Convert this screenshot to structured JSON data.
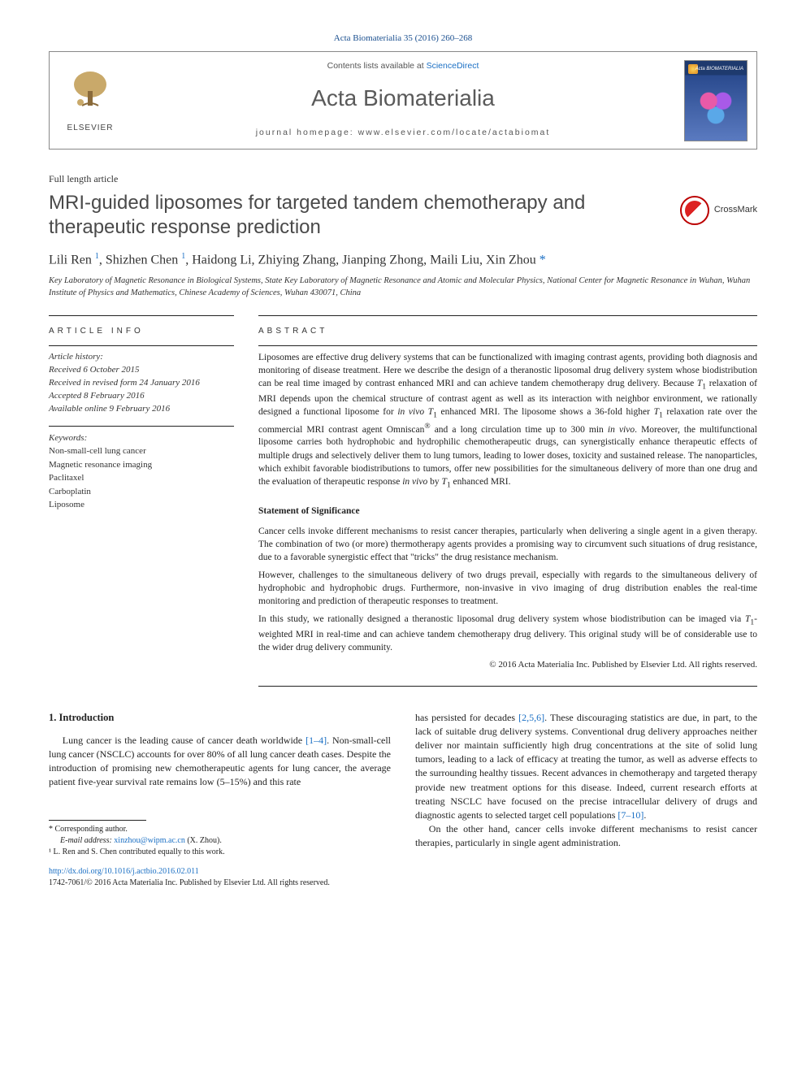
{
  "top_ref": "Acta Biomaterialia 35 (2016) 260–268",
  "header": {
    "contents_prefix": "Contents lists available at ",
    "contents_link": "ScienceDirect",
    "journal": "Acta Biomaterialia",
    "homepage_label": "journal homepage: ",
    "homepage_url": "www.elsevier.com/locate/actabiomat",
    "elsevier_word": "ELSEVIER",
    "cover_title": "Acta BIOMATERIALIA"
  },
  "article": {
    "type": "Full length article",
    "title": "MRI-guided liposomes for targeted tandem chemotherapy and therapeutic response prediction",
    "crossmark": "CrossMark",
    "authors_html": "Lili Ren <sup class=\"sup\">1</sup>, Shizhen Chen <sup class=\"sup\">1</sup>, Haidong Li, Zhiying Zhang, Jianping Zhong, Maili Liu, Xin Zhou <span class=\"star\">*</span>",
    "affiliation": "Key Laboratory of Magnetic Resonance in Biological Systems, State Key Laboratory of Magnetic Resonance and Atomic and Molecular Physics, National Center for Magnetic Resonance in Wuhan, Wuhan Institute of Physics and Mathematics, Chinese Academy of Sciences, Wuhan 430071, China"
  },
  "meta": {
    "info_heading": "ARTICLE INFO",
    "history_label": "Article history:",
    "received": "Received 6 October 2015",
    "revised": "Received in revised form 24 January 2016",
    "accepted": "Accepted 8 February 2016",
    "online": "Available online 9 February 2016",
    "keywords_label": "Keywords:",
    "keywords": [
      "Non-small-cell lung cancer",
      "Magnetic resonance imaging",
      "Paclitaxel",
      "Carboplatin",
      "Liposome"
    ]
  },
  "abstract": {
    "heading": "ABSTRACT",
    "text_html": "Liposomes are effective drug delivery systems that can be functionalized with imaging contrast agents, providing both diagnosis and monitoring of disease treatment. Here we describe the design of a theranostic liposomal drug delivery system whose biodistribution can be real time imaged by contrast enhanced MRI and can achieve tandem chemotherapy drug delivery. Because <i>T</i><sub>1</sub> relaxation of MRI depends upon the chemical structure of contrast agent as well as its interaction with neighbor environment, we rationally designed a functional liposome for <i>in vivo T</i><sub>1</sub> enhanced MRI. The liposome shows a 36-fold higher <i>T</i><sub>1</sub> relaxation rate over the commercial MRI contrast agent Omniscan<sup>®</sup> and a long circulation time up to 300 min <i>in vivo</i>. Moreover, the multifunctional liposome carries both hydrophobic and hydrophilic chemotherapeutic drugs, can synergistically enhance therapeutic effects of multiple drugs and selectively deliver them to lung tumors, leading to lower doses, toxicity and sustained release. The nanoparticles, which exhibit favorable biodistributions to tumors, offer new possibilities for the simultaneous delivery of more than one drug and the evaluation of therapeutic response <i>in vivo</i> by <i>T</i><sub>1</sub> enhanced MRI.",
    "stmt_heading": "Statement of Significance",
    "stmt_paras": [
      "Cancer cells invoke different mechanisms to resist cancer therapies, particularly when delivering a single agent in a given therapy. The combination of two (or more) thermotherapy agents provides a promising way to circumvent such situations of drug resistance, due to a favorable synergistic effect that \"tricks\" the drug resistance mechanism.",
      "However, challenges to the simultaneous delivery of two drugs prevail, especially with regards to the simultaneous delivery of hydrophobic and hydrophobic drugs. Furthermore, non-invasive in vivo imaging of drug distribution enables the real-time monitoring and prediction of therapeutic responses to treatment.",
      "In this study, we rationally designed a theranostic liposomal drug delivery system whose biodistribution can be imaged via <i>T</i><sub>1</sub>-weighted MRI in real-time and can achieve tandem chemotherapy drug delivery. This original study will be of considerable use to the wider drug delivery community."
    ],
    "copyright": "© 2016 Acta Materialia Inc. Published by Elsevier Ltd. All rights reserved."
  },
  "body": {
    "intro_heading": "1. Introduction",
    "col1_html": "Lung cancer is the leading cause of cancer death worldwide <a href=\"#\">[1–4]</a>. Non-small-cell lung cancer (NSCLC) accounts for over 80% of all lung cancer death cases. Despite the introduction of promising new chemotherapeutic agents for lung cancer, the average patient five-year survival rate remains low (5–15%) and this rate",
    "col2_p1_html": "has persisted for decades <a href=\"#\">[2,5,6]</a>. These discouraging statistics are due, in part, to the lack of suitable drug delivery systems. Conventional drug delivery approaches neither deliver nor maintain sufficiently high drug concentrations at the site of solid lung tumors, leading to a lack of efficacy at treating the tumor, as well as adverse effects to the surrounding healthy tissues. Recent advances in chemotherapy and targeted therapy provide new treatment options for this disease. Indeed, current research efforts at treating NSCLC have focused on the precise intracellular delivery of drugs and diagnostic agents to selected target cell populations <a href=\"#\">[7–10]</a>.",
    "col2_p2_html": "On the other hand, cancer cells invoke different mechanisms to resist cancer therapies, particularly in single agent administration."
  },
  "footnotes": {
    "corr": "* Corresponding author.",
    "email_label": "E-mail address: ",
    "email": "xinzhou@wipm.ac.cn",
    "email_paren": " (X. Zhou).",
    "equal": "¹ L. Ren and S. Chen contributed equally to this work."
  },
  "footer": {
    "doi": "http://dx.doi.org/10.1016/j.actbio.2016.02.011",
    "issn_line": "1742-7061/© 2016 Acta Materialia Inc. Published by Elsevier Ltd. All rights reserved."
  },
  "colors": {
    "link": "#1a6fc4",
    "heading_gray": "#4a4a4a"
  }
}
